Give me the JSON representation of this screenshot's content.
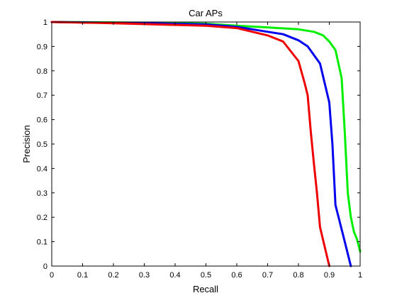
{
  "chart_data": {
    "type": "line",
    "title": "Car APs",
    "xlabel": "Recall",
    "ylabel": "Precision",
    "xlim": [
      0,
      1
    ],
    "ylim": [
      0,
      1
    ],
    "grid": false,
    "xticks": [
      "0",
      "0.1",
      "0.2",
      "0.3",
      "0.4",
      "0.5",
      "0.6",
      "0.7",
      "0.8",
      "0.9",
      "1"
    ],
    "yticks": [
      "0",
      "0.1",
      "0.2",
      "0.3",
      "0.4",
      "0.5",
      "0.6",
      "0.7",
      "0.8",
      "0.9",
      "1"
    ],
    "series": [
      {
        "color": "#00ee00",
        "points": [
          [
            0,
            1
          ],
          [
            0.3,
            0.997
          ],
          [
            0.5,
            0.993
          ],
          [
            0.6,
            0.985
          ],
          [
            0.7,
            0.978
          ],
          [
            0.8,
            0.97
          ],
          [
            0.85,
            0.96
          ],
          [
            0.88,
            0.945
          ],
          [
            0.9,
            0.92
          ],
          [
            0.92,
            0.885
          ],
          [
            0.94,
            0.77
          ],
          [
            0.95,
            0.55
          ],
          [
            0.96,
            0.3
          ],
          [
            0.97,
            0.2
          ],
          [
            0.98,
            0.14
          ],
          [
            0.99,
            0.11
          ],
          [
            1.0,
            0.06
          ]
        ]
      },
      {
        "color": "#0000ee",
        "points": [
          [
            0,
            1
          ],
          [
            0.3,
            0.995
          ],
          [
            0.5,
            0.99
          ],
          [
            0.6,
            0.98
          ],
          [
            0.65,
            0.97
          ],
          [
            0.7,
            0.96
          ],
          [
            0.75,
            0.95
          ],
          [
            0.8,
            0.925
          ],
          [
            0.83,
            0.9
          ],
          [
            0.87,
            0.83
          ],
          [
            0.9,
            0.67
          ],
          [
            0.91,
            0.5
          ],
          [
            0.92,
            0.25
          ],
          [
            0.93,
            0.2
          ],
          [
            0.95,
            0.1
          ],
          [
            0.97,
            0.0
          ]
        ]
      },
      {
        "color": "#ee0000",
        "points": [
          [
            0,
            1
          ],
          [
            0.2,
            0.995
          ],
          [
            0.4,
            0.988
          ],
          [
            0.5,
            0.985
          ],
          [
            0.6,
            0.975
          ],
          [
            0.7,
            0.945
          ],
          [
            0.75,
            0.92
          ],
          [
            0.8,
            0.84
          ],
          [
            0.82,
            0.75
          ],
          [
            0.83,
            0.7
          ],
          [
            0.84,
            0.55
          ],
          [
            0.85,
            0.42
          ],
          [
            0.86,
            0.3
          ],
          [
            0.87,
            0.16
          ],
          [
            0.9,
            0.0
          ]
        ]
      }
    ]
  }
}
